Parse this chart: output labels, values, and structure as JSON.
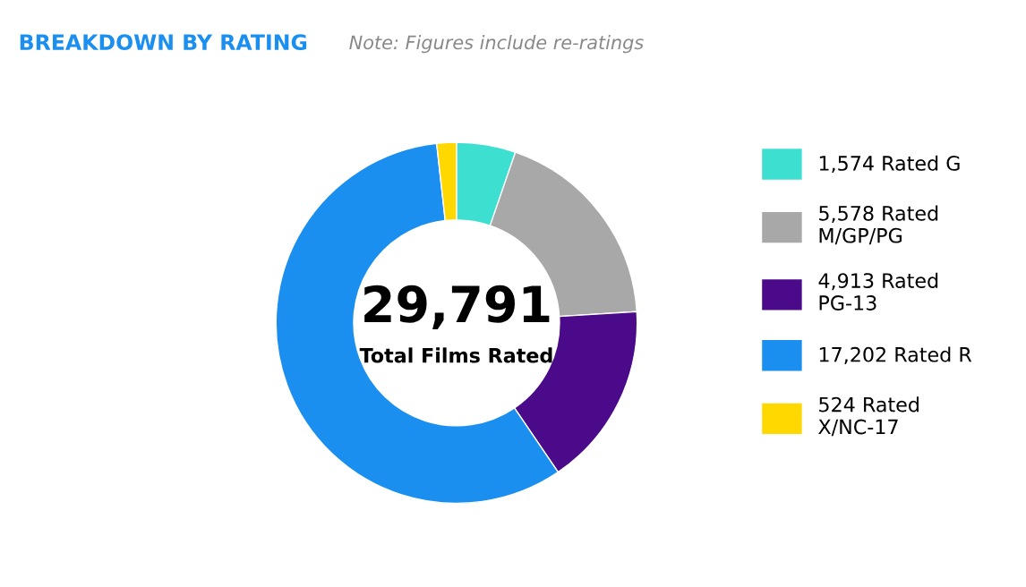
{
  "chart_data": {
    "type": "donut",
    "title": "BREAKDOWN BY RATING",
    "subtitle": "Note: Figures include re-ratings",
    "categories": [
      "1,574 Rated G",
      "5,578 Rated\nM/GP/PG",
      "4,913 Rated\nPG-13",
      "17,202 Rated R",
      "524 Rated\nX/NC-17"
    ],
    "values": [
      1574,
      5578,
      4913,
      17202,
      524
    ],
    "colors": [
      "#3de0d0",
      "#a8a8a8",
      "#4a0a8a",
      "#1a8ff0",
      "#ffd800"
    ],
    "annotations": [
      "29,791",
      "Total Films Rated"
    ],
    "legend": "right"
  }
}
